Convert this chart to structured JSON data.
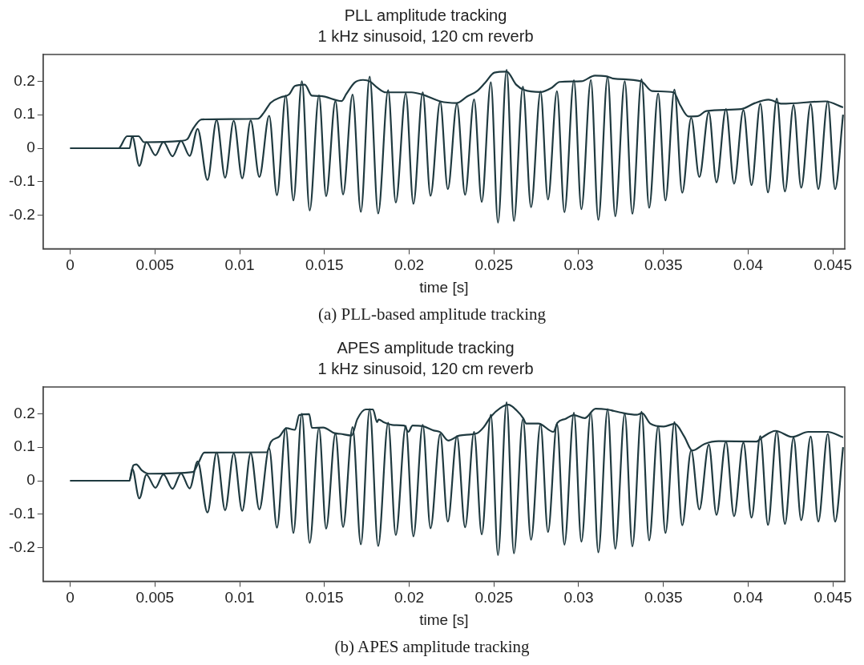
{
  "chart_data": [
    {
      "type": "line",
      "title": "PLL amplitude tracking",
      "subtitle": "1 kHz sinusoid, 120 cm reverb",
      "xlabel": "time [s]",
      "xlim": [
        -0.0016,
        0.0457
      ],
      "xticks": [
        0,
        0.005,
        0.01,
        0.015,
        0.02,
        0.025,
        0.03,
        0.035,
        0.04,
        0.045
      ],
      "ylim": [
        -0.3,
        0.28
      ],
      "yticks": [
        -0.2,
        -0.1,
        0,
        0.1,
        0.2
      ],
      "annotations": [
        "(a) PLL-based amplitude tracking"
      ],
      "series": [
        {
          "color": "#1f3a40",
          "x": [
            0,
            0.0035,
            0.00366,
            0.00408,
            0.0045,
            0.00503,
            0.0055,
            0.00604,
            0.00654,
            0.00705,
            0.00752,
            0.0081,
            0.00864,
            0.00914,
            0.00965,
            0.01015,
            0.01065,
            0.01116,
            0.01174,
            0.0122,
            0.01272,
            0.01317,
            0.01367,
            0.01413,
            0.01468,
            0.0151,
            0.01565,
            0.0161,
            0.01666,
            0.01715,
            0.01767,
            0.01817,
            0.01876,
            0.01921,
            0.0198,
            0.02025,
            0.0208,
            0.02126,
            0.02183,
            0.02228,
            0.02282,
            0.0233,
            0.02383,
            0.02428,
            0.02482,
            0.02524,
            0.02575,
            0.02618,
            0.02671,
            0.02719,
            0.02775,
            0.02819,
            0.02872,
            0.02916,
            0.02972,
            0.03016,
            0.03072,
            0.03116,
            0.03171,
            0.03216,
            0.03272,
            0.03317,
            0.03371,
            0.03416,
            0.03469,
            0.03512,
            0.03565,
            0.03611,
            0.03664,
            0.03712,
            0.03768,
            0.03813,
            0.03869,
            0.03917,
            0.03972,
            0.0402,
            0.04072,
            0.04117,
            0.04169,
            0.04217,
            0.04268,
            0.04313,
            0.04369,
            0.04414,
            0.0447,
            0.04513,
            0.0456
          ],
          "values": [
            0,
            0,
            0.036,
            -0.053,
            0.018,
            -0.021,
            0.019,
            -0.024,
            0.022,
            -0.023,
            0.058,
            -0.095,
            0.084,
            -0.088,
            0.082,
            -0.09,
            0.083,
            -0.086,
            0.097,
            -0.14,
            0.157,
            -0.156,
            0.2,
            -0.186,
            0.158,
            -0.143,
            0.141,
            -0.138,
            0.16,
            -0.19,
            0.214,
            -0.195,
            0.173,
            -0.162,
            0.164,
            -0.166,
            0.167,
            -0.142,
            0.139,
            -0.122,
            0.133,
            -0.139,
            0.146,
            -0.16,
            0.197,
            -0.222,
            0.234,
            -0.217,
            0.184,
            -0.176,
            0.169,
            -0.153,
            0.17,
            -0.191,
            0.203,
            -0.182,
            0.204,
            -0.214,
            0.214,
            -0.203,
            0.2,
            -0.196,
            0.206,
            -0.178,
            0.163,
            -0.156,
            0.175,
            -0.133,
            0.091,
            -0.086,
            0.108,
            -0.102,
            0.117,
            -0.106,
            0.114,
            -0.11,
            0.133,
            -0.132,
            0.148,
            -0.129,
            0.129,
            -0.118,
            0.132,
            -0.122,
            0.14,
            -0.122,
            0.1
          ]
        },
        {
          "color": "#1f3a40",
          "x": [
            0,
            0.00285,
            0.00336,
            0.00403,
            0.00436,
            0.00654,
            0.00691,
            0.00721,
            0.00775,
            0.01107,
            0.01141,
            0.01183,
            0.01242,
            0.01292,
            0.01326,
            0.01384,
            0.01426,
            0.01477,
            0.01602,
            0.01628,
            0.01678,
            0.01728,
            0.0177,
            0.01812,
            0.01862,
            0.02013,
            0.0208,
            0.02183,
            0.02279,
            0.02343,
            0.02399,
            0.02447,
            0.02503,
            0.02575,
            0.02631,
            0.02679,
            0.02775,
            0.02839,
            0.02888,
            0.03016,
            0.03096,
            0.0316,
            0.03208,
            0.03368,
            0.03432,
            0.0356,
            0.036,
            0.03648,
            0.03704,
            0.03752,
            0.0396,
            0.0404,
            0.0412,
            0.042,
            0.04456,
            0.0456
          ],
          "values": [
            0,
            0,
            0.036,
            0.036,
            0.018,
            0.022,
            0.027,
            0.055,
            0.086,
            0.088,
            0.105,
            0.136,
            0.152,
            0.161,
            0.186,
            0.19,
            0.157,
            0.156,
            0.141,
            0.161,
            0.196,
            0.204,
            0.199,
            0.181,
            0.167,
            0.167,
            0.16,
            0.14,
            0.135,
            0.155,
            0.17,
            0.195,
            0.226,
            0.229,
            0.19,
            0.174,
            0.168,
            0.18,
            0.198,
            0.2,
            0.217,
            0.215,
            0.208,
            0.2,
            0.171,
            0.167,
            0.128,
            0.095,
            0.096,
            0.111,
            0.117,
            0.135,
            0.145,
            0.133,
            0.14,
            0.122
          ]
        }
      ]
    },
    {
      "type": "line",
      "title": "APES amplitude tracking",
      "subtitle": "1 kHz sinusoid, 120 cm reverb",
      "xlabel": "time [s]",
      "xlim": [
        -0.0016,
        0.0457
      ],
      "xticks": [
        0,
        0.005,
        0.01,
        0.015,
        0.02,
        0.025,
        0.03,
        0.035,
        0.04,
        0.045
      ],
      "ylim": [
        -0.3,
        0.28
      ],
      "yticks": [
        -0.2,
        -0.1,
        0,
        0.1,
        0.2
      ],
      "annotations": [
        "(b) APES amplitude tracking"
      ],
      "series": [
        {
          "color": "#1f3a40",
          "x": [
            0,
            0.0035,
            0.00366,
            0.00408,
            0.0045,
            0.00503,
            0.0055,
            0.00604,
            0.00654,
            0.00705,
            0.00752,
            0.0081,
            0.00864,
            0.00914,
            0.00965,
            0.01015,
            0.01065,
            0.01116,
            0.01174,
            0.0122,
            0.01272,
            0.01317,
            0.01367,
            0.01413,
            0.01468,
            0.0151,
            0.01565,
            0.0161,
            0.01666,
            0.01715,
            0.01767,
            0.01817,
            0.01876,
            0.01921,
            0.0198,
            0.02025,
            0.0208,
            0.02126,
            0.02183,
            0.02228,
            0.02282,
            0.0233,
            0.02383,
            0.02428,
            0.02482,
            0.02524,
            0.02575,
            0.02618,
            0.02671,
            0.02719,
            0.02775,
            0.02819,
            0.02872,
            0.02916,
            0.02972,
            0.03016,
            0.03072,
            0.03116,
            0.03171,
            0.03216,
            0.03272,
            0.03317,
            0.03371,
            0.03416,
            0.03469,
            0.03512,
            0.03565,
            0.03611,
            0.03664,
            0.03712,
            0.03768,
            0.03813,
            0.03869,
            0.03917,
            0.03972,
            0.0402,
            0.04072,
            0.04117,
            0.04169,
            0.04217,
            0.04268,
            0.04313,
            0.04369,
            0.04414,
            0.0447,
            0.04513,
            0.0456
          ],
          "values": [
            0,
            0,
            0.036,
            -0.053,
            0.018,
            -0.021,
            0.019,
            -0.024,
            0.022,
            -0.023,
            0.058,
            -0.095,
            0.084,
            -0.088,
            0.082,
            -0.09,
            0.083,
            -0.086,
            0.097,
            -0.14,
            0.157,
            -0.156,
            0.2,
            -0.186,
            0.158,
            -0.143,
            0.141,
            -0.138,
            0.16,
            -0.19,
            0.214,
            -0.195,
            0.173,
            -0.162,
            0.164,
            -0.166,
            0.167,
            -0.142,
            0.139,
            -0.122,
            0.133,
            -0.139,
            0.146,
            -0.16,
            0.197,
            -0.222,
            0.234,
            -0.217,
            0.184,
            -0.176,
            0.169,
            -0.153,
            0.17,
            -0.191,
            0.203,
            -0.182,
            0.204,
            -0.214,
            0.214,
            -0.203,
            0.2,
            -0.196,
            0.206,
            -0.178,
            0.163,
            -0.156,
            0.175,
            -0.133,
            0.091,
            -0.086,
            0.108,
            -0.102,
            0.117,
            -0.106,
            0.114,
            -0.11,
            0.133,
            -0.132,
            0.148,
            -0.129,
            0.129,
            -0.118,
            0.132,
            -0.122,
            0.14,
            -0.122,
            0.1
          ]
        },
        {
          "color": "#1f3a40",
          "x": [
            0,
            0.00348,
            0.00373,
            0.0039,
            0.00423,
            0.00465,
            0.00724,
            0.00758,
            0.00791,
            0.01159,
            0.01184,
            0.01234,
            0.01276,
            0.01326,
            0.01351,
            0.0141,
            0.01426,
            0.01493,
            0.0156,
            0.01594,
            0.0166,
            0.01694,
            0.01744,
            0.01786,
            0.01811,
            0.0182,
            0.01853,
            0.01911,
            0.0197,
            0.01995,
            0.0202,
            0.02079,
            0.02146,
            0.02183,
            0.02231,
            0.02296,
            0.024,
            0.0244,
            0.02481,
            0.02537,
            0.02585,
            0.02634,
            0.02674,
            0.0269,
            0.02762,
            0.02851,
            0.02875,
            0.02923,
            0.02971,
            0.03036,
            0.031,
            0.03165,
            0.03245,
            0.03342,
            0.03374,
            0.03422,
            0.03502,
            0.03567,
            0.03623,
            0.03671,
            0.03744,
            0.03824,
            0.04049,
            0.04082,
            0.04162,
            0.04259,
            0.04355,
            0.04468,
            0.0456
          ],
          "values": [
            0,
            0,
            0.046,
            0.049,
            0.031,
            0.021,
            0.026,
            0.055,
            0.084,
            0.085,
            0.116,
            0.132,
            0.157,
            0.152,
            0.196,
            0.199,
            0.158,
            0.159,
            0.142,
            0.14,
            0.135,
            0.184,
            0.213,
            0.213,
            0.175,
            0.183,
            0.174,
            0.166,
            0.165,
            0.146,
            0.165,
            0.163,
            0.15,
            0.145,
            0.12,
            0.135,
            0.142,
            0.16,
            0.191,
            0.217,
            0.227,
            0.21,
            0.186,
            0.171,
            0.171,
            0.146,
            0.173,
            0.185,
            0.196,
            0.187,
            0.215,
            0.213,
            0.204,
            0.197,
            0.202,
            0.171,
            0.162,
            0.17,
            0.132,
            0.09,
            0.11,
            0.118,
            0.117,
            0.129,
            0.149,
            0.131,
            0.146,
            0.146,
            0.13
          ]
        }
      ]
    }
  ]
}
